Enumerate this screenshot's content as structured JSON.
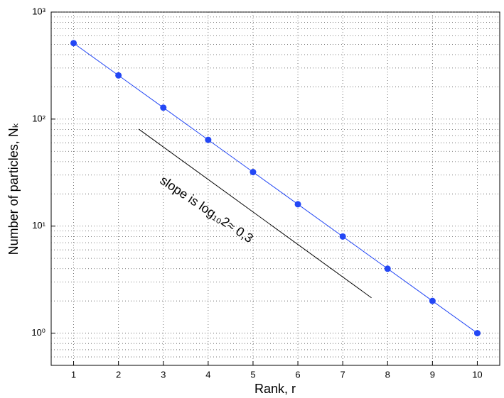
{
  "chart_data": {
    "type": "line",
    "xlabel": "Rank, r",
    "ylabel": "Number of particles, Nₖ",
    "x": [
      1,
      2,
      3,
      4,
      5,
      6,
      7,
      8,
      9,
      10
    ],
    "series": [
      {
        "color": "#2347f5",
        "values": [
          512,
          256,
          128,
          64,
          32,
          16,
          8,
          4,
          2,
          1
        ]
      }
    ],
    "xlim": [
      0.5,
      10.5
    ],
    "xticks": [
      1,
      2,
      3,
      4,
      5,
      6,
      7,
      8,
      9,
      10
    ],
    "ylim": [
      0.5,
      1000
    ],
    "log_y": true,
    "yticks": [
      {
        "value": 1,
        "label": "10⁰"
      },
      {
        "value": 10,
        "label": "10¹"
      },
      {
        "value": 100,
        "label": "10²"
      },
      {
        "value": 1000,
        "label": "10³"
      }
    ],
    "yminorticks": [
      0.6,
      0.7,
      0.8,
      0.9,
      2,
      3,
      4,
      5,
      6,
      7,
      8,
      9,
      20,
      30,
      40,
      50,
      60,
      70,
      80,
      90,
      200,
      300,
      400,
      500,
      600,
      700,
      800,
      900
    ],
    "grid": true,
    "reference_line": {
      "color": "#000000",
      "x": [
        2.45,
        7.64
      ],
      "y": [
        80.7,
        2.14
      ]
    },
    "annotation": "slope is log₁₀2≈ 0,3"
  }
}
